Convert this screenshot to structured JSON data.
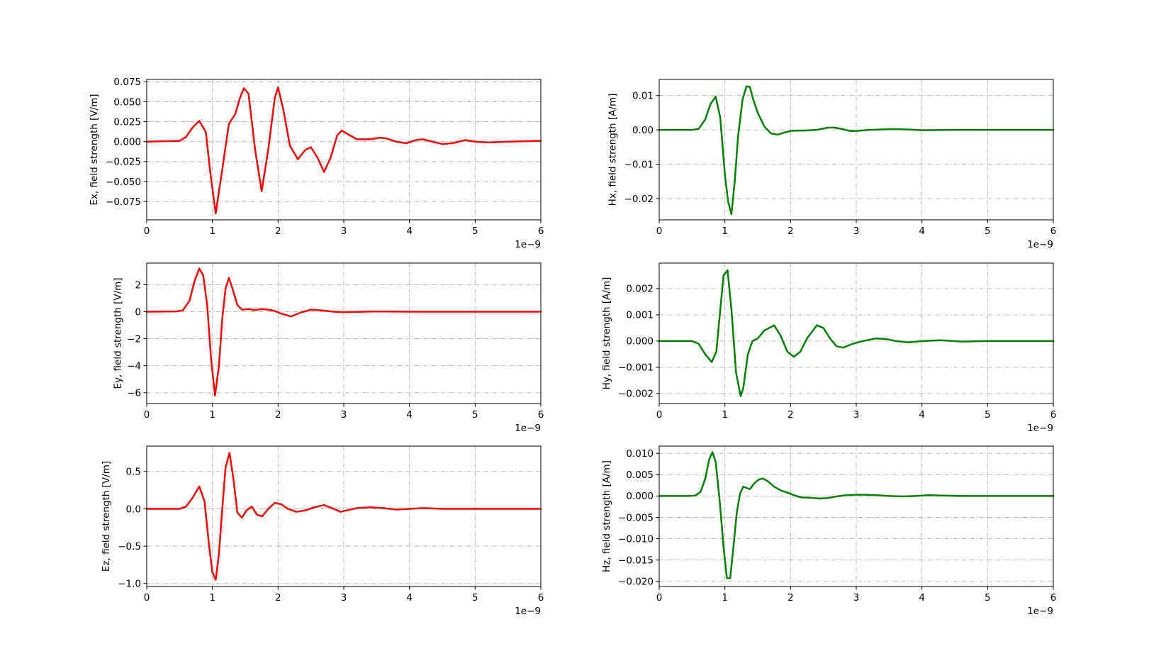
{
  "chart_data": [
    {
      "id": "ex",
      "type": "line",
      "title": "",
      "xlabel": "",
      "ylabel": "Ex, field strength [V/m]",
      "x_offset_label": "1e−9",
      "xlim": [
        0,
        6
      ],
      "ylim": [
        -0.098,
        0.078
      ],
      "xticks": [
        0,
        1,
        2,
        3,
        4,
        5,
        6
      ],
      "xtick_labels": [
        "0",
        "1",
        "2",
        "3",
        "4",
        "5",
        "6"
      ],
      "yticks": [
        0.075,
        0.05,
        0.025,
        0.0,
        -0.025,
        -0.05,
        -0.075
      ],
      "ytick_labels": [
        "0.075",
        "0.050",
        "0.025",
        "0.000",
        "−0.025",
        "−0.050",
        "−0.075"
      ],
      "grid": true,
      "series": [
        {
          "color": "#ff0000",
          "x": [
            0,
            0.5,
            0.6,
            0.7,
            0.8,
            0.9,
            0.97,
            1.05,
            1.15,
            1.25,
            1.35,
            1.42,
            1.48,
            1.55,
            1.65,
            1.75,
            1.85,
            1.95,
            2.0,
            2.08,
            2.18,
            2.3,
            2.42,
            2.5,
            2.6,
            2.7,
            2.8,
            2.9,
            2.97,
            3.05,
            3.2,
            3.4,
            3.55,
            3.65,
            3.8,
            3.95,
            4.1,
            4.2,
            4.3,
            4.5,
            4.65,
            4.85,
            5.0,
            5.2,
            5.5,
            6.0
          ],
          "y": [
            0.0,
            0.001,
            0.006,
            0.018,
            0.026,
            0.012,
            -0.04,
            -0.09,
            -0.035,
            0.022,
            0.035,
            0.055,
            0.067,
            0.06,
            -0.01,
            -0.062,
            -0.01,
            0.055,
            0.068,
            0.04,
            -0.005,
            -0.022,
            -0.01,
            -0.007,
            -0.02,
            -0.038,
            -0.02,
            0.008,
            0.014,
            0.01,
            0.003,
            0.003,
            0.005,
            0.004,
            0.0,
            -0.002,
            0.002,
            0.003,
            0.001,
            -0.003,
            -0.002,
            0.002,
            0.0,
            -0.001,
            0.0,
            0.001
          ]
        }
      ]
    },
    {
      "id": "hx",
      "type": "line",
      "title": "",
      "xlabel": "",
      "ylabel": "Hx, field strength [A/m]",
      "x_offset_label": "1e−9",
      "xlim": [
        0,
        6
      ],
      "ylim": [
        -0.0262,
        0.0147
      ],
      "xticks": [
        0,
        1,
        2,
        3,
        4,
        5,
        6
      ],
      "xtick_labels": [
        "0",
        "1",
        "2",
        "3",
        "4",
        "5",
        "6"
      ],
      "yticks": [
        0.01,
        0.0,
        -0.01,
        -0.02
      ],
      "ytick_labels": [
        "0.01",
        "0.00",
        "−0.01",
        "−0.02"
      ],
      "grid": true,
      "series": [
        {
          "color": "#008000",
          "x": [
            0,
            0.5,
            0.6,
            0.7,
            0.78,
            0.86,
            0.93,
            1.0,
            1.05,
            1.1,
            1.15,
            1.2,
            1.27,
            1.33,
            1.38,
            1.43,
            1.5,
            1.6,
            1.7,
            1.8,
            1.9,
            2.0,
            2.1,
            2.2,
            2.4,
            2.55,
            2.65,
            2.75,
            2.9,
            3.0,
            3.2,
            3.5,
            3.65,
            3.8,
            4.0,
            4.5,
            5.0,
            5.5,
            6.0
          ],
          "y": [
            0.0,
            0.0,
            0.0003,
            0.003,
            0.0075,
            0.0097,
            0.0035,
            -0.013,
            -0.021,
            -0.0245,
            -0.015,
            -0.002,
            0.009,
            0.0127,
            0.0125,
            0.009,
            0.005,
            0.001,
            -0.001,
            -0.0014,
            -0.0008,
            -0.0003,
            -0.0002,
            -0.0002,
            0.0,
            0.0006,
            0.0007,
            0.0004,
            -0.0003,
            -0.0003,
            0.0,
            0.0002,
            0.0002,
            0.0001,
            -0.0001,
            0.0,
            0.0,
            0.0,
            0.0
          ]
        }
      ]
    },
    {
      "id": "ey",
      "type": "line",
      "title": "",
      "xlabel": "",
      "ylabel": "Ey, field strength [V/m]",
      "x_offset_label": "1e−9",
      "xlim": [
        0,
        6
      ],
      "ylim": [
        -6.8,
        3.6
      ],
      "xticks": [
        0,
        1,
        2,
        3,
        4,
        5,
        6
      ],
      "xtick_labels": [
        "0",
        "1",
        "2",
        "3",
        "4",
        "5",
        "6"
      ],
      "yticks": [
        2,
        0,
        -2,
        -4,
        -6
      ],
      "ytick_labels": [
        "2",
        "0",
        "−2",
        "−4",
        "−6"
      ],
      "grid": true,
      "series": [
        {
          "color": "#ff0000",
          "x": [
            0,
            0.45,
            0.55,
            0.65,
            0.73,
            0.8,
            0.86,
            0.92,
            0.98,
            1.04,
            1.1,
            1.15,
            1.2,
            1.25,
            1.3,
            1.38,
            1.45,
            1.55,
            1.65,
            1.75,
            1.85,
            1.95,
            2.05,
            2.2,
            2.35,
            2.5,
            2.65,
            2.85,
            3.0,
            3.5,
            4.0,
            5.0,
            6.0
          ],
          "y": [
            0.0,
            0.02,
            0.1,
            0.8,
            2.3,
            3.2,
            2.7,
            0.5,
            -3.5,
            -6.2,
            -4.0,
            -0.5,
            1.7,
            2.5,
            1.8,
            0.5,
            0.15,
            0.2,
            0.12,
            0.2,
            0.15,
            0.05,
            -0.15,
            -0.35,
            -0.05,
            0.15,
            0.1,
            0.0,
            -0.03,
            0.02,
            0.0,
            0.0,
            0.0
          ]
        }
      ]
    },
    {
      "id": "hy",
      "type": "line",
      "title": "",
      "xlabel": "",
      "ylabel": "Hy, field strength [A/m]",
      "x_offset_label": "1e−9",
      "xlim": [
        0,
        6
      ],
      "ylim": [
        -0.00238,
        0.00297
      ],
      "xticks": [
        0,
        1,
        2,
        3,
        4,
        5,
        6
      ],
      "xtick_labels": [
        "0",
        "1",
        "2",
        "3",
        "4",
        "5",
        "6"
      ],
      "yticks": [
        0.002,
        0.001,
        0.0,
        -0.001,
        -0.002
      ],
      "ytick_labels": [
        "0.002",
        "0.001",
        "0.000",
        "−0.001",
        "−0.002"
      ],
      "grid": true,
      "series": [
        {
          "color": "#008000",
          "x": [
            0,
            0.5,
            0.6,
            0.7,
            0.8,
            0.87,
            0.93,
            0.98,
            1.04,
            1.1,
            1.17,
            1.24,
            1.28,
            1.35,
            1.42,
            1.5,
            1.6,
            1.75,
            1.85,
            1.95,
            2.05,
            2.15,
            2.25,
            2.4,
            2.5,
            2.6,
            2.7,
            2.8,
            2.95,
            3.1,
            3.3,
            3.45,
            3.6,
            3.8,
            4.0,
            4.3,
            4.6,
            5.0,
            5.5,
            6.0
          ],
          "y": [
            0.0,
            0.0,
            -0.0001,
            -0.0005,
            -0.0008,
            -0.0004,
            0.0012,
            0.0025,
            0.0027,
            0.0012,
            -0.0012,
            -0.0021,
            -0.0018,
            -0.0005,
            0.0,
            0.0001,
            0.0004,
            0.0006,
            0.0002,
            -0.0004,
            -0.0006,
            -0.0004,
            0.0001,
            0.0006,
            0.0005,
            0.0001,
            -0.0002,
            -0.00025,
            -0.0001,
            0.0,
            0.0001,
            8e-05,
            0.0,
            -5e-05,
            0.0,
            3e-05,
            -2e-05,
            0.0,
            0.0,
            0.0
          ]
        }
      ]
    },
    {
      "id": "ez",
      "type": "line",
      "title": "",
      "xlabel": "",
      "ylabel": "Ez, field strength [V/m]",
      "x_offset_label": "1e−9",
      "xlim": [
        0,
        6
      ],
      "ylim": [
        -1.04,
        0.84
      ],
      "xticks": [
        0,
        1,
        2,
        3,
        4,
        5,
        6
      ],
      "xtick_labels": [
        "0",
        "1",
        "2",
        "3",
        "4",
        "5",
        "6"
      ],
      "yticks": [
        0.5,
        0.0,
        -0.5,
        -1.0
      ],
      "ytick_labels": [
        "0.5",
        "0.0",
        "−0.5",
        "−1.0"
      ],
      "grid": true,
      "series": [
        {
          "color": "#ff0000",
          "x": [
            0,
            0.5,
            0.6,
            0.7,
            0.8,
            0.88,
            0.95,
            1.0,
            1.05,
            1.1,
            1.15,
            1.2,
            1.26,
            1.32,
            1.38,
            1.45,
            1.52,
            1.6,
            1.68,
            1.76,
            1.85,
            1.95,
            2.05,
            2.15,
            2.28,
            2.42,
            2.55,
            2.7,
            2.82,
            2.95,
            3.05,
            3.2,
            3.4,
            3.6,
            3.8,
            4.0,
            4.2,
            4.5,
            5.0,
            5.5,
            6.0
          ],
          "y": [
            0.0,
            0.0,
            0.03,
            0.15,
            0.3,
            0.1,
            -0.5,
            -0.85,
            -0.95,
            -0.6,
            0.0,
            0.55,
            0.75,
            0.4,
            -0.05,
            -0.12,
            -0.02,
            0.03,
            -0.08,
            -0.1,
            0.0,
            0.08,
            0.06,
            0.0,
            -0.04,
            -0.02,
            0.02,
            0.05,
            0.01,
            -0.04,
            -0.02,
            0.01,
            0.02,
            0.01,
            -0.01,
            0.0,
            0.01,
            0.0,
            0.0,
            0.0,
            0.0
          ]
        }
      ]
    },
    {
      "id": "hz",
      "type": "line",
      "title": "",
      "xlabel": "",
      "ylabel": "Hz, field strength [A/m]",
      "x_offset_label": "1e−9",
      "xlim": [
        0,
        6
      ],
      "ylim": [
        -0.0212,
        0.0117
      ],
      "xticks": [
        0,
        1,
        2,
        3,
        4,
        5,
        6
      ],
      "xtick_labels": [
        "0",
        "1",
        "2",
        "3",
        "4",
        "5",
        "6"
      ],
      "yticks": [
        0.01,
        0.005,
        0.0,
        -0.005,
        -0.01,
        -0.015,
        -0.02
      ],
      "ytick_labels": [
        "0.010",
        "0.005",
        "0.000",
        "−0.005",
        "−0.010",
        "−0.015",
        "−0.020"
      ],
      "grid": true,
      "series": [
        {
          "color": "#008000",
          "x": [
            0,
            0.45,
            0.55,
            0.63,
            0.7,
            0.76,
            0.81,
            0.86,
            0.92,
            0.98,
            1.03,
            1.08,
            1.13,
            1.18,
            1.23,
            1.28,
            1.33,
            1.38,
            1.45,
            1.52,
            1.58,
            1.65,
            1.75,
            1.85,
            1.95,
            2.05,
            2.15,
            2.3,
            2.45,
            2.55,
            2.7,
            2.85,
            3.0,
            3.15,
            3.3,
            3.5,
            3.7,
            3.9,
            4.1,
            4.3,
            4.6,
            5.0,
            5.5,
            6.0
          ],
          "y": [
            0.0,
            0.0,
            0.0001,
            0.001,
            0.004,
            0.0085,
            0.0103,
            0.008,
            -0.001,
            -0.012,
            -0.0192,
            -0.0193,
            -0.012,
            -0.004,
            0.0005,
            0.0022,
            0.0019,
            0.0016,
            0.003,
            0.0039,
            0.0041,
            0.0035,
            0.0022,
            0.0013,
            0.0008,
            0.0002,
            -0.0003,
            -0.0004,
            -0.0006,
            -0.0005,
            -0.0001,
            0.0002,
            0.0003,
            0.0003,
            0.0002,
            0.0,
            -0.0001,
            0.0,
            0.0002,
            0.0001,
            0.0,
            0.0,
            0.0,
            0.0
          ]
        }
      ]
    }
  ]
}
